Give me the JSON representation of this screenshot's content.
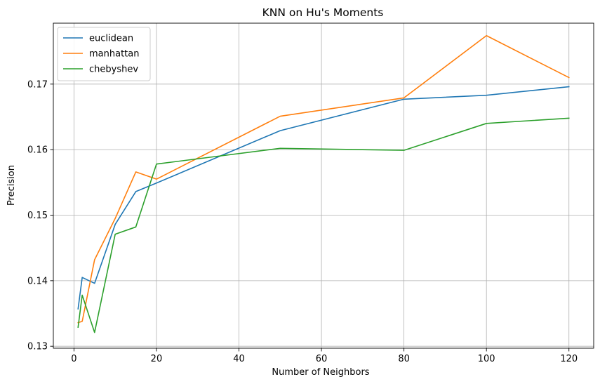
{
  "chart_data": {
    "type": "line",
    "title": "KNN on Hu's Moments",
    "xlabel": "Number of Neighbors",
    "ylabel": "Precision",
    "xlim": [
      -5,
      126
    ],
    "ylim": [
      0.1297,
      0.1793
    ],
    "xticks": [
      0,
      20,
      40,
      60,
      80,
      100,
      120
    ],
    "xtick_labels": [
      "0",
      "20",
      "40",
      "60",
      "80",
      "100",
      "120"
    ],
    "yticks": [
      0.13,
      0.14,
      0.15,
      0.16,
      0.17
    ],
    "ytick_labels": [
      "0.13",
      "0.14",
      "0.15",
      "0.16",
      "0.17"
    ],
    "grid": true,
    "legend_position": "top-left",
    "x": [
      1,
      2,
      5,
      10,
      15,
      20,
      50,
      80,
      100,
      120
    ],
    "series": [
      {
        "name": "euclidean",
        "color": "#1f77b4",
        "values": [
          0.1357,
          0.1405,
          0.1396,
          0.1486,
          0.1536,
          0.1549,
          0.1629,
          0.1677,
          0.1683,
          0.1696
        ]
      },
      {
        "name": "manhattan",
        "color": "#ff7f0e",
        "values": [
          0.1336,
          0.1338,
          0.1432,
          0.1495,
          0.1566,
          0.1555,
          0.1651,
          0.1679,
          0.1774,
          0.171
        ]
      },
      {
        "name": "chebyshev",
        "color": "#2ca02c",
        "values": [
          0.1329,
          0.1378,
          0.1321,
          0.1471,
          0.1482,
          0.1578,
          0.1602,
          0.1599,
          0.164,
          0.1648
        ]
      }
    ]
  }
}
